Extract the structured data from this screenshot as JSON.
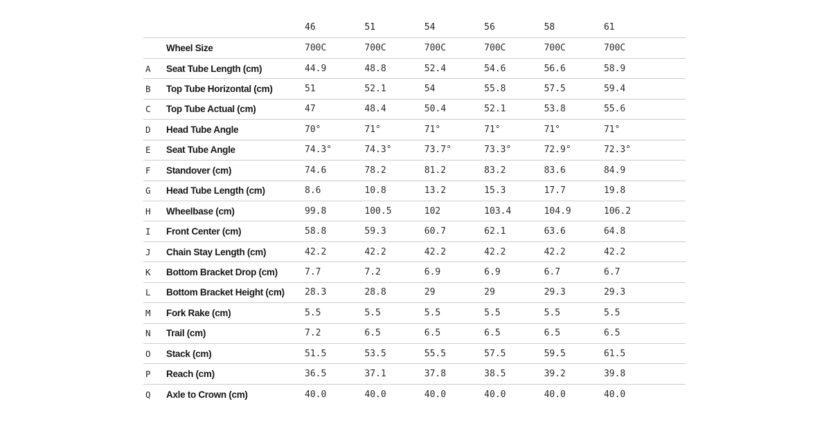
{
  "table": {
    "name": "bike-geometry-table",
    "size_columns": [
      "46",
      "51",
      "54",
      "56",
      "58",
      "61"
    ],
    "rows": [
      {
        "letter": "",
        "label": "Wheel Size",
        "values": [
          "700C",
          "700C",
          "700C",
          "700C",
          "700C",
          "700C"
        ]
      },
      {
        "letter": "A",
        "label": "Seat Tube Length (cm)",
        "values": [
          "44.9",
          "48.8",
          "52.4",
          "54.6",
          "56.6",
          "58.9"
        ]
      },
      {
        "letter": "B",
        "label": "Top Tube Horizontal (cm)",
        "values": [
          "51",
          "52.1",
          "54",
          "55.8",
          "57.5",
          "59.4"
        ]
      },
      {
        "letter": "C",
        "label": "Top Tube Actual (cm)",
        "values": [
          "47",
          "48.4",
          "50.4",
          "52.1",
          "53.8",
          "55.6"
        ]
      },
      {
        "letter": "D",
        "label": "Head Tube Angle",
        "values": [
          "70°",
          "71°",
          "71°",
          "71°",
          "71°",
          "71°"
        ]
      },
      {
        "letter": "E",
        "label": "Seat Tube Angle",
        "values": [
          "74.3°",
          "74.3°",
          "73.7°",
          "73.3°",
          "72.9°",
          "72.3°"
        ]
      },
      {
        "letter": "F",
        "label": "Standover (cm)",
        "values": [
          "74.6",
          "78.2",
          "81.2",
          "83.2",
          "83.6",
          "84.9"
        ]
      },
      {
        "letter": "G",
        "label": "Head Tube Length (cm)",
        "values": [
          "8.6",
          "10.8",
          "13.2",
          "15.3",
          "17.7",
          "19.8"
        ]
      },
      {
        "letter": "H",
        "label": "Wheelbase (cm)",
        "values": [
          "99.8",
          "100.5",
          "102",
          "103.4",
          "104.9",
          "106.2"
        ]
      },
      {
        "letter": "I",
        "label": "Front Center (cm)",
        "values": [
          "58.8",
          "59.3",
          "60.7",
          "62.1",
          "63.6",
          "64.8"
        ]
      },
      {
        "letter": "J",
        "label": "Chain Stay Length (cm)",
        "values": [
          "42.2",
          "42.2",
          "42.2",
          "42.2",
          "42.2",
          "42.2"
        ]
      },
      {
        "letter": "K",
        "label": "Bottom Bracket Drop (cm)",
        "values": [
          "7.7",
          "7.2",
          "6.9",
          "6.9",
          "6.7",
          "6.7"
        ]
      },
      {
        "letter": "L",
        "label": "Bottom Bracket Height (cm)",
        "values": [
          "28.3",
          "28.8",
          "29",
          "29",
          "29.3",
          "29.3"
        ]
      },
      {
        "letter": "M",
        "label": "Fork Rake (cm)",
        "values": [
          "5.5",
          "5.5",
          "5.5",
          "5.5",
          "5.5",
          "5.5"
        ]
      },
      {
        "letter": "N",
        "label": "Trail (cm)",
        "values": [
          "7.2",
          "6.5",
          "6.5",
          "6.5",
          "6.5",
          "6.5"
        ]
      },
      {
        "letter": "O",
        "label": "Stack (cm)",
        "values": [
          "51.5",
          "53.5",
          "55.5",
          "57.5",
          "59.5",
          "61.5"
        ]
      },
      {
        "letter": "P",
        "label": "Reach (cm)",
        "values": [
          "36.5",
          "37.1",
          "37.8",
          "38.5",
          "39.2",
          "39.8"
        ]
      },
      {
        "letter": "Q",
        "label": "Axle to Crown (cm)",
        "values": [
          "40.0",
          "40.0",
          "40.0",
          "40.0",
          "40.0",
          "40.0"
        ]
      }
    ]
  },
  "colors": {
    "label_text": "#161616",
    "value_text": "#2a2a2a",
    "rule": "#cccccc",
    "background": "#ffffff"
  }
}
